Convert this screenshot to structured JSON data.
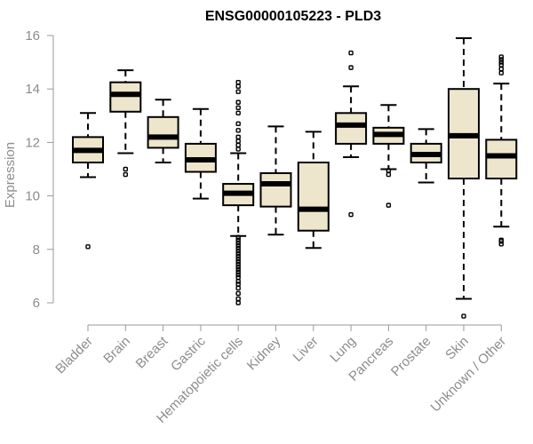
{
  "chart_data": {
    "type": "boxplot",
    "title": "ENSG00000105223 - PLD3",
    "xlabel": "",
    "ylabel": "Expression",
    "ylim": [
      5.3,
      16.4
    ],
    "yticks": [
      6,
      8,
      10,
      12,
      14,
      16
    ],
    "box_fill": "#ede6cc",
    "axis_color": "#999999",
    "label_color": "#8c8c8c",
    "categories": [
      "Bladder",
      "Brain",
      "Breast",
      "Gastric",
      "Hematopoietic cells",
      "Kidney",
      "Liver",
      "Lung",
      "Pancreas",
      "Prostate",
      "Skin",
      "Unknown / Other"
    ],
    "boxes": [
      {
        "category": "Bladder",
        "whisker_low": 10.7,
        "q1": 11.25,
        "median": 11.7,
        "q3": 12.2,
        "whisker_high": 13.1,
        "outliers": [
          8.1
        ]
      },
      {
        "category": "Brain",
        "whisker_low": 11.6,
        "q1": 13.15,
        "median": 13.8,
        "q3": 14.25,
        "whisker_high": 14.7,
        "outliers": [
          10.8,
          11.0
        ]
      },
      {
        "category": "Breast",
        "whisker_low": 11.25,
        "q1": 11.8,
        "median": 12.2,
        "q3": 12.95,
        "whisker_high": 13.6,
        "outliers": []
      },
      {
        "category": "Gastric",
        "whisker_low": 9.9,
        "q1": 10.9,
        "median": 11.35,
        "q3": 11.95,
        "whisker_high": 13.25,
        "outliers": []
      },
      {
        "category": "Hematopoietic cells",
        "whisker_low": 8.5,
        "q1": 9.65,
        "median": 10.1,
        "q3": 10.45,
        "whisker_high": 11.6,
        "outliers": [
          6.0,
          6.15,
          6.35,
          6.55,
          6.7,
          6.8,
          6.95,
          7.05,
          7.15,
          7.25,
          7.35,
          7.45,
          7.55,
          7.65,
          7.75,
          7.85,
          7.95,
          8.05,
          8.15,
          8.25,
          8.35,
          8.45,
          11.75,
          11.9,
          12.05,
          12.2,
          12.45,
          12.7,
          13.1,
          13.3,
          13.5,
          13.9,
          14.1,
          14.25
        ]
      },
      {
        "category": "Kidney",
        "whisker_low": 8.55,
        "q1": 9.6,
        "median": 10.45,
        "q3": 10.85,
        "whisker_high": 12.6,
        "outliers": []
      },
      {
        "category": "Liver",
        "whisker_low": 8.05,
        "q1": 8.7,
        "median": 9.5,
        "q3": 11.25,
        "whisker_high": 12.4,
        "outliers": []
      },
      {
        "category": "Lung",
        "whisker_low": 11.45,
        "q1": 11.95,
        "median": 12.65,
        "q3": 13.1,
        "whisker_high": 14.1,
        "outliers": [
          9.3,
          14.8,
          15.35
        ]
      },
      {
        "category": "Pancreas",
        "whisker_low": 11.0,
        "q1": 11.95,
        "median": 12.3,
        "q3": 12.55,
        "whisker_high": 13.4,
        "outliers": [
          9.65,
          10.8,
          10.95
        ]
      },
      {
        "category": "Prostate",
        "whisker_low": 10.5,
        "q1": 11.25,
        "median": 11.55,
        "q3": 11.95,
        "whisker_high": 12.5,
        "outliers": []
      },
      {
        "category": "Skin",
        "whisker_low": 6.15,
        "q1": 10.65,
        "median": 12.25,
        "q3": 14.0,
        "whisker_high": 15.9,
        "outliers": [
          5.5
        ]
      },
      {
        "category": "Unknown / Other",
        "whisker_low": 8.85,
        "q1": 10.65,
        "median": 11.5,
        "q3": 12.1,
        "whisker_high": 14.2,
        "outliers": [
          8.2,
          8.3,
          8.35,
          14.6,
          14.75,
          14.9,
          15.0,
          15.1,
          15.2
        ]
      }
    ]
  }
}
